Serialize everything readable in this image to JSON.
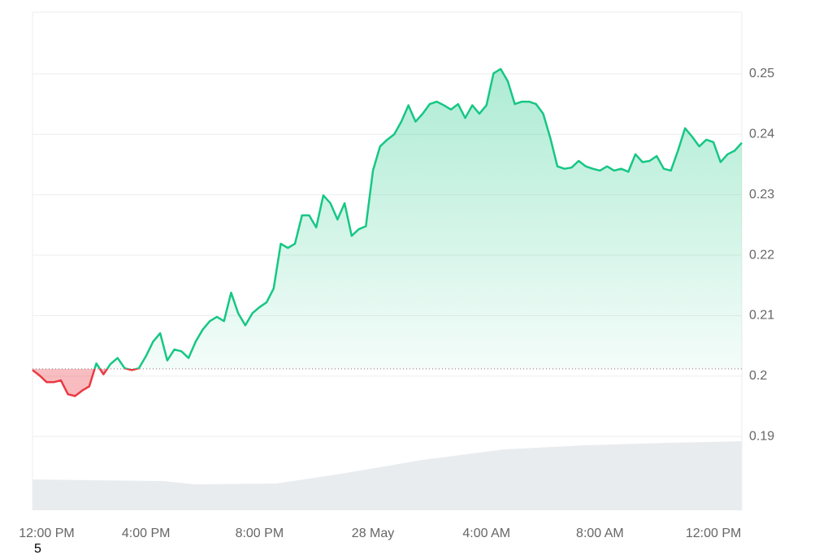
{
  "chart_data": {
    "type": "line",
    "categories": [
      null,
      null,
      "12:00 PM",
      null,
      null,
      null,
      null,
      null,
      null,
      null,
      null,
      null,
      null,
      null,
      null,
      null,
      "4:00 PM",
      null,
      null,
      null,
      null,
      null,
      null,
      null,
      null,
      null,
      null,
      null,
      null,
      null,
      null,
      null,
      "8:00 PM",
      null,
      null,
      null,
      null,
      null,
      null,
      null,
      null,
      null,
      null,
      null,
      null,
      null,
      null,
      null,
      "28 May",
      null,
      null,
      null,
      null,
      null,
      null,
      null,
      null,
      null,
      null,
      null,
      null,
      null,
      null,
      null,
      "4:00 AM",
      null,
      null,
      null,
      null,
      null,
      null,
      null,
      null,
      null,
      null,
      null,
      null,
      null,
      null,
      null,
      "8:00 AM",
      null,
      null,
      null,
      null,
      null,
      null,
      null,
      null,
      null,
      null,
      null,
      null,
      null,
      null,
      null,
      "12:00 PM",
      null,
      null,
      null,
      null
    ],
    "values": [
      0.201,
      0.2001,
      0.199,
      0.199,
      0.1993,
      0.197,
      0.1967,
      0.1976,
      0.1983,
      0.2021,
      0.2003,
      0.202,
      0.203,
      0.2013,
      0.201,
      0.2013,
      0.2033,
      0.2057,
      0.2071,
      0.2026,
      0.2044,
      0.2041,
      0.203,
      0.2057,
      0.2077,
      0.2091,
      0.2098,
      0.2091,
      0.2138,
      0.2104,
      0.2084,
      0.2104,
      0.2114,
      0.2122,
      0.2145,
      0.2219,
      0.2212,
      0.2219,
      0.2266,
      0.2266,
      0.2246,
      0.2299,
      0.2286,
      0.2259,
      0.2286,
      0.2232,
      0.2243,
      0.2248,
      0.234,
      0.238,
      0.2391,
      0.24,
      0.2421,
      0.2448,
      0.2421,
      0.2434,
      0.245,
      0.2454,
      0.2448,
      0.2441,
      0.245,
      0.2427,
      0.2448,
      0.2434,
      0.2448,
      0.2501,
      0.2508,
      0.2488,
      0.245,
      0.2454,
      0.2454,
      0.245,
      0.2434,
      0.2394,
      0.2347,
      0.2343,
      0.2345,
      0.2356,
      0.2347,
      0.2343,
      0.234,
      0.2347,
      0.234,
      0.2343,
      0.2338,
      0.2367,
      0.2354,
      0.2356,
      0.2364,
      0.2343,
      0.234,
      0.2373,
      0.241,
      0.2396,
      0.238,
      0.2391,
      0.2387,
      0.2354,
      0.2367,
      0.2373,
      0.2386
    ],
    "color": "#16c784",
    "down_color": "#ea3943",
    "baseline": 0.2012,
    "ylim": [
      0.1778,
      0.2602
    ],
    "yticks": [
      0.19,
      0.2,
      0.21,
      0.22,
      0.23,
      0.24,
      0.25
    ],
    "grid": true,
    "annotation": "5"
  }
}
